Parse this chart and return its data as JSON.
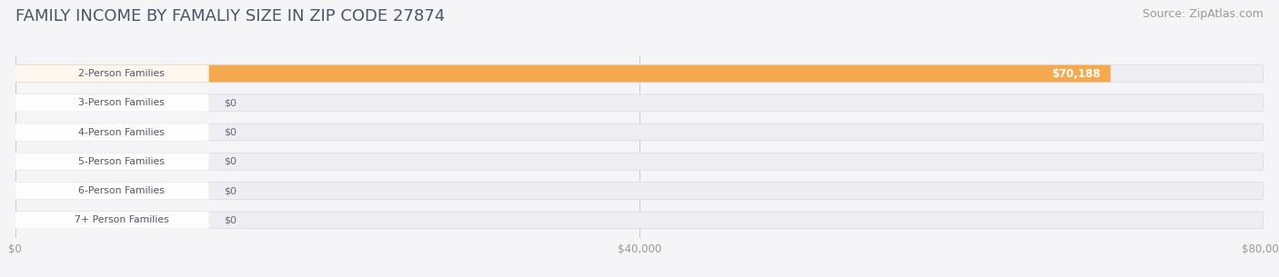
{
  "title": "FAMILY INCOME BY FAMALIY SIZE IN ZIP CODE 27874",
  "source": "Source: ZipAtlas.com",
  "categories": [
    "2-Person Families",
    "3-Person Families",
    "4-Person Families",
    "5-Person Families",
    "6-Person Families",
    "7+ Person Families"
  ],
  "values": [
    70188,
    0,
    0,
    0,
    0,
    0
  ],
  "bar_colors": [
    "#f5a94e",
    "#e89090",
    "#9ab5e0",
    "#c0a8d8",
    "#6dc0b8",
    "#9aaad8"
  ],
  "value_labels": [
    "$70,188",
    "$0",
    "$0",
    "$0",
    "$0",
    "$0"
  ],
  "xlim": [
    0,
    80000
  ],
  "xticks": [
    0,
    40000,
    80000
  ],
  "xtick_labels": [
    "$0",
    "$40,000",
    "$80,000"
  ],
  "title_color": "#4a5568",
  "title_fontsize": 13,
  "source_fontsize": 9,
  "row_bg_color": "#e8e8ee",
  "background_color": "#f5f5f8"
}
